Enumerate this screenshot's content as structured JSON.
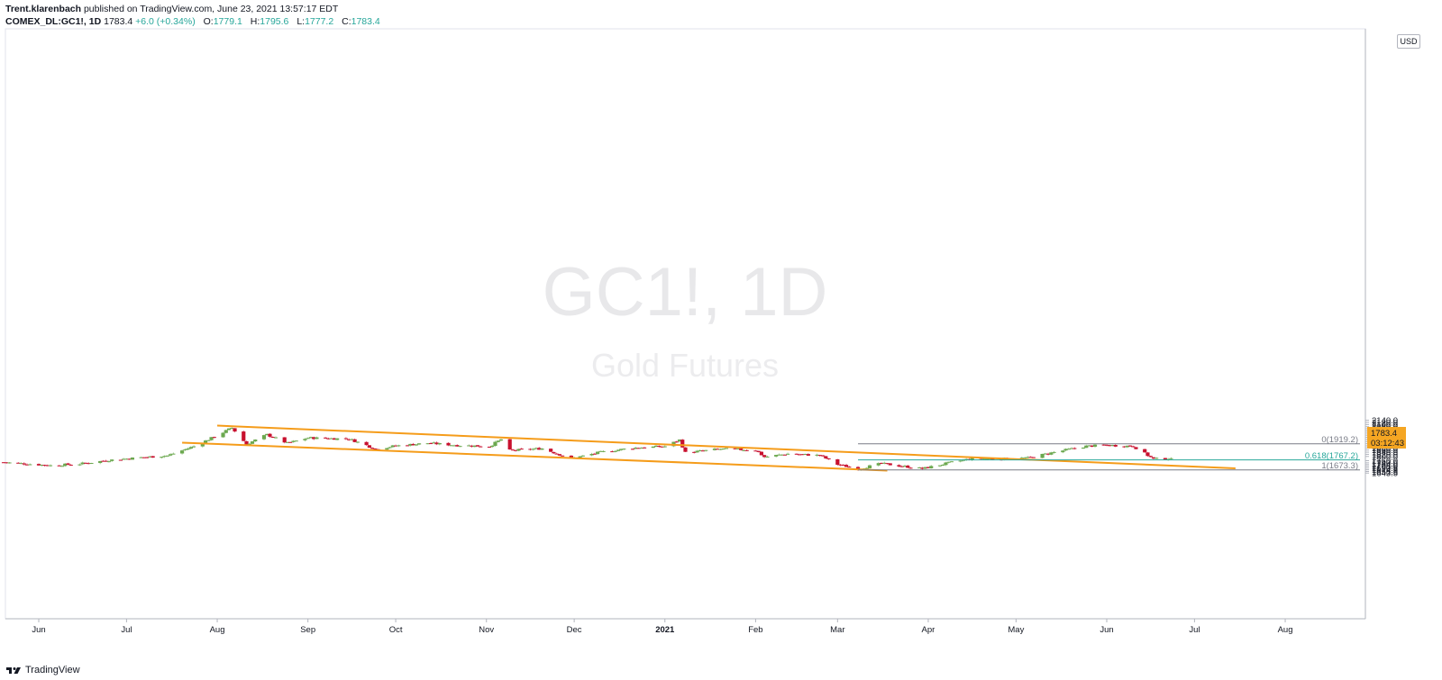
{
  "header": {
    "author": "Trent.klarenbach",
    "published_text": "published on TradingView.com, June 23, 2021 13:57:17 EDT",
    "symbol": "COMEX_DL:GC1!, 1D",
    "last": "1783.4",
    "change": "+6.0 (+0.34%)",
    "open_label": "O:",
    "open": "1779.1",
    "high_label": "H:",
    "high": "1795.6",
    "low_label": "L:",
    "low": "1777.2",
    "close_label": "C:",
    "close": "1783.4"
  },
  "watermark": {
    "line1": "GC1!, 1D",
    "line2": "Gold Futures"
  },
  "currency": "USD",
  "price_tag": {
    "price": "1783.4",
    "countdown": "03:12:43"
  },
  "footer": {
    "brand": "TradingView"
  },
  "colors": {
    "up": "#6ba84f",
    "down": "#c8102e",
    "channel": "#f59c1a",
    "fib_mid": "#26a69a",
    "tag": "#f5a623"
  },
  "chart_data": {
    "type": "candlestick",
    "y_axis_labels": [
      "2140.0",
      "2120.0",
      "2100.0",
      "2080.0",
      "2060.0",
      "2040.0",
      "2020.0",
      "2000.0",
      "1980.0",
      "1960.0",
      "1940.0",
      "1920.0",
      "1900.0",
      "1880.0",
      "1860.0",
      "1840.0",
      "1820.0",
      "1800.0",
      "1760.0",
      "1740.0",
      "1724.0",
      "1708.0",
      "1690.5",
      "1674.5",
      "1658.5",
      "1643.5"
    ],
    "x_axis_labels": [
      {
        "label": "Jun",
        "date": "2020-06-01"
      },
      {
        "label": "Jul",
        "date": "2020-07-01"
      },
      {
        "label": "Aug",
        "date": "2020-08-01"
      },
      {
        "label": "Sep",
        "date": "2020-09-01"
      },
      {
        "label": "Oct",
        "date": "2020-10-01"
      },
      {
        "label": "Nov",
        "date": "2020-11-01"
      },
      {
        "label": "Dec",
        "date": "2020-12-01"
      },
      {
        "label": "2021",
        "date": "2021-01-01"
      },
      {
        "label": "Feb",
        "date": "2021-02-01"
      },
      {
        "label": "Mar",
        "date": "2021-03-01"
      },
      {
        "label": "Apr",
        "date": "2021-04-01"
      },
      {
        "label": "May",
        "date": "2021-05-01"
      },
      {
        "label": "Jun",
        "date": "2021-06-01"
      },
      {
        "label": "Jul",
        "date": "2021-07-01"
      },
      {
        "label": "Aug",
        "date": "2021-08-01"
      }
    ],
    "close_path": [
      [
        "2020-05-20",
        1745
      ],
      [
        "2020-06-05",
        1715
      ],
      [
        "2020-06-15",
        1730
      ],
      [
        "2020-06-25",
        1765
      ],
      [
        "2020-07-06",
        1790
      ],
      [
        "2020-07-15",
        1808
      ],
      [
        "2020-07-24",
        1895
      ],
      [
        "2020-07-31",
        1985
      ],
      [
        "2020-08-06",
        2069
      ],
      [
        "2020-08-11",
        1915
      ],
      [
        "2020-08-18",
        2005
      ],
      [
        "2020-08-25",
        1925
      ],
      [
        "2020-09-01",
        1975
      ],
      [
        "2020-09-15",
        1965
      ],
      [
        "2020-09-21",
        1905
      ],
      [
        "2020-09-24",
        1870
      ],
      [
        "2020-10-01",
        1900
      ],
      [
        "2020-10-12",
        1925
      ],
      [
        "2020-10-22",
        1905
      ],
      [
        "2020-11-02",
        1895
      ],
      [
        "2020-11-06",
        1960
      ],
      [
        "2020-11-09",
        1855
      ],
      [
        "2020-11-20",
        1875
      ],
      [
        "2020-11-30",
        1780
      ],
      [
        "2020-12-10",
        1840
      ],
      [
        "2020-12-21",
        1880
      ],
      [
        "2021-01-01",
        1895
      ],
      [
        "2021-01-06",
        1955
      ],
      [
        "2021-01-08",
        1835
      ],
      [
        "2021-01-20",
        1870
      ],
      [
        "2021-02-01",
        1860
      ],
      [
        "2021-02-04",
        1795
      ],
      [
        "2021-02-12",
        1825
      ],
      [
        "2021-02-23",
        1810
      ],
      [
        "2021-03-01",
        1725
      ],
      [
        "2021-03-08",
        1683
      ],
      [
        "2021-03-16",
        1733
      ],
      [
        "2021-03-30",
        1685
      ],
      [
        "2021-04-09",
        1745
      ],
      [
        "2021-04-16",
        1780
      ],
      [
        "2021-04-26",
        1777
      ],
      [
        "2021-05-05",
        1785
      ],
      [
        "2021-05-14",
        1840
      ],
      [
        "2021-05-25",
        1897
      ],
      [
        "2021-06-01",
        1905
      ],
      [
        "2021-06-10",
        1897
      ],
      [
        "2021-06-17",
        1775
      ],
      [
        "2021-06-23",
        1783.4
      ]
    ],
    "trendlines": [
      {
        "name": "upper-channel",
        "from": [
          "2020-08-01",
          2090
        ],
        "to": [
          "2021-07-15",
          1688
        ]
      },
      {
        "name": "lower-channel",
        "from": [
          "2020-07-20",
          1930
        ],
        "to": [
          "2021-03-18",
          1667
        ]
      }
    ],
    "fibonacci": [
      {
        "label": "0(1919.2)",
        "level": 1919.2,
        "from": "2021-03-08"
      },
      {
        "label": "0.618(1767.2)",
        "level": 1767.2,
        "from": "2021-03-08"
      },
      {
        "label": "1(1673.3)",
        "level": 1673.3,
        "from": "2021-03-08"
      }
    ],
    "last_price": 1783.4
  }
}
